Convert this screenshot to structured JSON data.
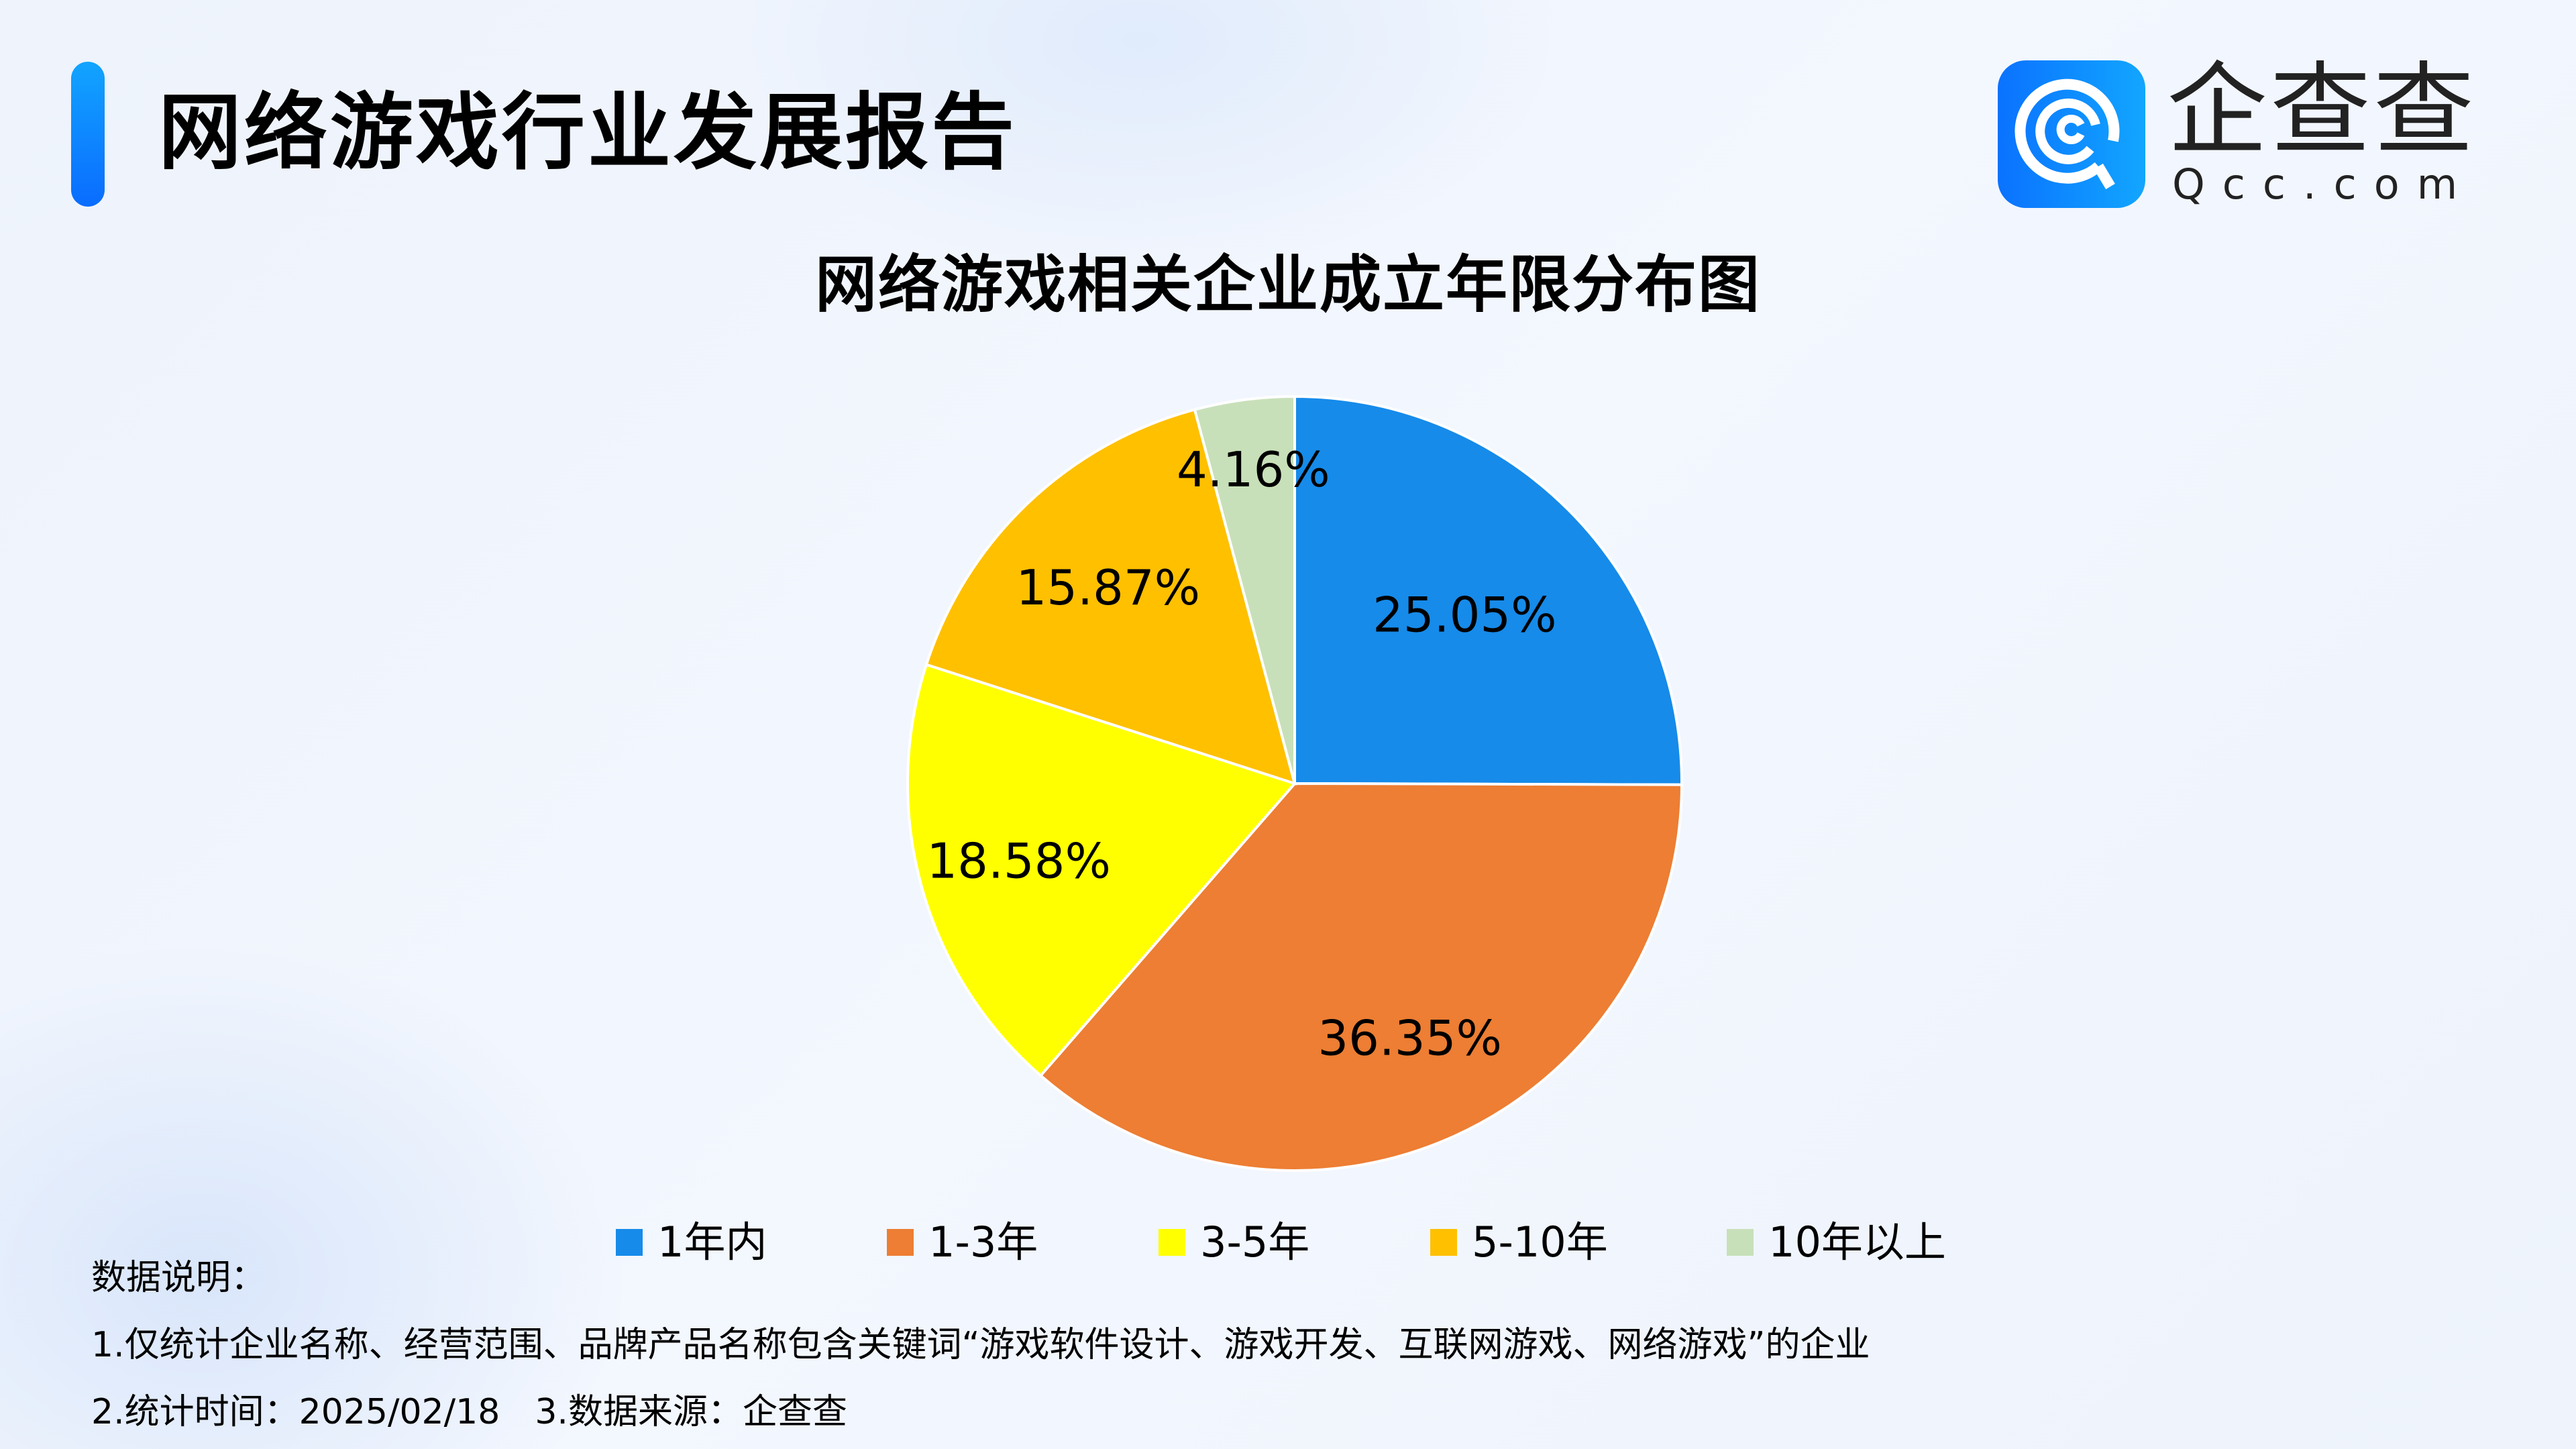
{
  "header": {
    "report_title": "网络游戏行业发展报告",
    "accent_color": "#0a6cff"
  },
  "logo": {
    "name_cn": "企查查",
    "name_en": "Qcc.com",
    "mark_color": "#0a72ff",
    "icon": "qcc-logo-icon"
  },
  "chart_data": {
    "type": "pie",
    "title": "网络游戏相关企业成立年限分布图",
    "categories": [
      "1年内",
      "1-3年",
      "3-5年",
      "5-10年",
      "10年以上"
    ],
    "values": [
      25.05,
      36.35,
      18.58,
      15.87,
      4.16
    ],
    "labels": [
      "25.05%",
      "36.35%",
      "18.58%",
      "15.87%",
      "4.16%"
    ],
    "colors": [
      "#168bea",
      "#ed7e33",
      "#ffff00",
      "#ffc000",
      "#c8e0b9"
    ],
    "unit": "%",
    "start_angle": "12 o'clock",
    "direction": "clockwise",
    "legend_position": "bottom",
    "xlabel": "",
    "ylabel": ""
  },
  "legend": {
    "items": [
      {
        "label": "1年内",
        "color": "#168bea"
      },
      {
        "label": "1-3年",
        "color": "#ed7e33"
      },
      {
        "label": "3-5年",
        "color": "#ffff00"
      },
      {
        "label": "5-10年",
        "color": "#ffc000"
      },
      {
        "label": "10年以上",
        "color": "#c8e0b9"
      }
    ]
  },
  "notes": {
    "heading": "数据说明：",
    "line1": "1.仅统计企业名称、经营范围、品牌产品名称包含关键词“游戏软件设计、游戏开发、互联网游戏、网络游戏”的企业",
    "line2": "2.统计时间：2025/02/18　3.数据来源：企查查"
  }
}
